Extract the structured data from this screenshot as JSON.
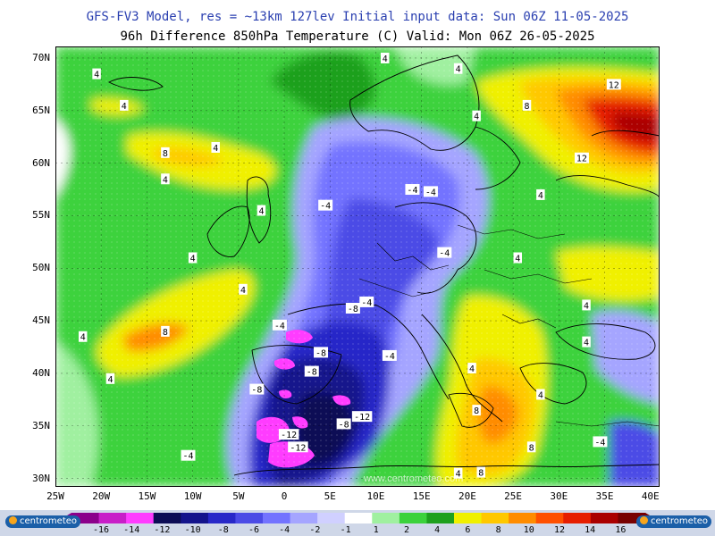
{
  "header": {
    "line1": "GFS-FV3 Model, res = ~13km 127lev   Initial input data: Sun 06Z 11-05-2025",
    "line2": "96h Difference 850hPa Temperature (C)  Valid: Mon 06Z 26-05-2025"
  },
  "axes": {
    "lat_labels": [
      "70N",
      "65N",
      "60N",
      "55N",
      "50N",
      "45N",
      "40N",
      "35N",
      "30N"
    ],
    "lon_labels": [
      "25W",
      "20W",
      "15W",
      "10W",
      "5W",
      "0",
      "5E",
      "10E",
      "15E",
      "20E",
      "25E",
      "30E",
      "35E",
      "40E"
    ]
  },
  "map": {
    "contour_labels": [
      {
        "text": "4",
        "lon": -20.5,
        "lat": 68.5
      },
      {
        "text": "4",
        "lon": -17.5,
        "lat": 65.5
      },
      {
        "text": "4",
        "lon": -7.5,
        "lat": 61.5
      },
      {
        "text": "8",
        "lon": -13,
        "lat": 61.0
      },
      {
        "text": "4",
        "lon": -13,
        "lat": 58.5
      },
      {
        "text": "4",
        "lon": -2.5,
        "lat": 55.5
      },
      {
        "text": "4",
        "lon": -10,
        "lat": 51.0
      },
      {
        "text": "4",
        "lon": -4.5,
        "lat": 48.0
      },
      {
        "text": "8",
        "lon": -13,
        "lat": 44.0
      },
      {
        "text": "4",
        "lon": -22,
        "lat": 43.5
      },
      {
        "text": "4",
        "lon": -19,
        "lat": 39.5
      },
      {
        "text": "4",
        "lon": 11,
        "lat": 70.0
      },
      {
        "text": "4",
        "lon": 19,
        "lat": 69.0
      },
      {
        "text": "4",
        "lon": 21,
        "lat": 64.5
      },
      {
        "text": "8",
        "lon": 26.5,
        "lat": 65.5
      },
      {
        "text": "12",
        "lon": 36,
        "lat": 67.5
      },
      {
        "text": "12",
        "lon": 32.5,
        "lat": 60.5
      },
      {
        "text": "4",
        "lon": 28,
        "lat": 57.0
      },
      {
        "text": "-4",
        "lon": 4.5,
        "lat": 56.0
      },
      {
        "text": "-4",
        "lon": 14,
        "lat": 57.5
      },
      {
        "text": "-4",
        "lon": 16,
        "lat": 57.3
      },
      {
        "text": "-4",
        "lon": 17.5,
        "lat": 51.5
      },
      {
        "text": "4",
        "lon": 25.5,
        "lat": 51.0
      },
      {
        "text": "4",
        "lon": 33,
        "lat": 46.5
      },
      {
        "text": "4",
        "lon": 33,
        "lat": 43.0
      },
      {
        "text": "-8",
        "lon": 7.5,
        "lat": 46.2
      },
      {
        "text": "-4",
        "lon": 9,
        "lat": 46.8
      },
      {
        "text": "-4",
        "lon": -0.5,
        "lat": 44.6
      },
      {
        "text": "-8",
        "lon": 4,
        "lat": 42.0
      },
      {
        "text": "-8",
        "lon": 3,
        "lat": 40.2
      },
      {
        "text": "-4",
        "lon": 11.5,
        "lat": 41.7
      },
      {
        "text": "-8",
        "lon": -3,
        "lat": 38.5
      },
      {
        "text": "4",
        "lon": 20.5,
        "lat": 40.5
      },
      {
        "text": "4",
        "lon": 28,
        "lat": 38.0
      },
      {
        "text": "8",
        "lon": 21,
        "lat": 36.5
      },
      {
        "text": "-8",
        "lon": 6.5,
        "lat": 35.2
      },
      {
        "text": "-12",
        "lon": 8.5,
        "lat": 35.9
      },
      {
        "text": "-12",
        "lon": 0.5,
        "lat": 34.2
      },
      {
        "text": "-12",
        "lon": 1.5,
        "lat": 33.0
      },
      {
        "text": "-4",
        "lon": -10.5,
        "lat": 32.2
      },
      {
        "text": "8",
        "lon": 27,
        "lat": 33.0
      },
      {
        "text": "-4",
        "lon": 34.5,
        "lat": 33.5
      },
      {
        "text": "4",
        "lon": 19,
        "lat": 30.5
      },
      {
        "text": "8",
        "lon": 21.5,
        "lat": 30.6
      }
    ],
    "watermark": "www.centrometeo.com"
  },
  "legend": {
    "levels": [
      "-16",
      "-14",
      "-12",
      "-10",
      "-8",
      "-6",
      "-4",
      "-2",
      "-1",
      "1",
      "2",
      "4",
      "6",
      "8",
      "10",
      "12",
      "14",
      "16"
    ],
    "colors": [
      "#8b008b",
      "#c81ec8",
      "#ff3cff",
      "#0c0c55",
      "#14148c",
      "#2828c8",
      "#4b4be6",
      "#7373ff",
      "#a5a5ff",
      "#d0d0ff",
      "#ffffff",
      "#a0f0a0",
      "#3cd23c",
      "#1ea01e",
      "#f0f000",
      "#ffc800",
      "#ff8c00",
      "#ff5000",
      "#e61e00",
      "#aa0000",
      "#780000"
    ],
    "logo_left": "centrometeo",
    "logo_right": "centrometeo"
  }
}
